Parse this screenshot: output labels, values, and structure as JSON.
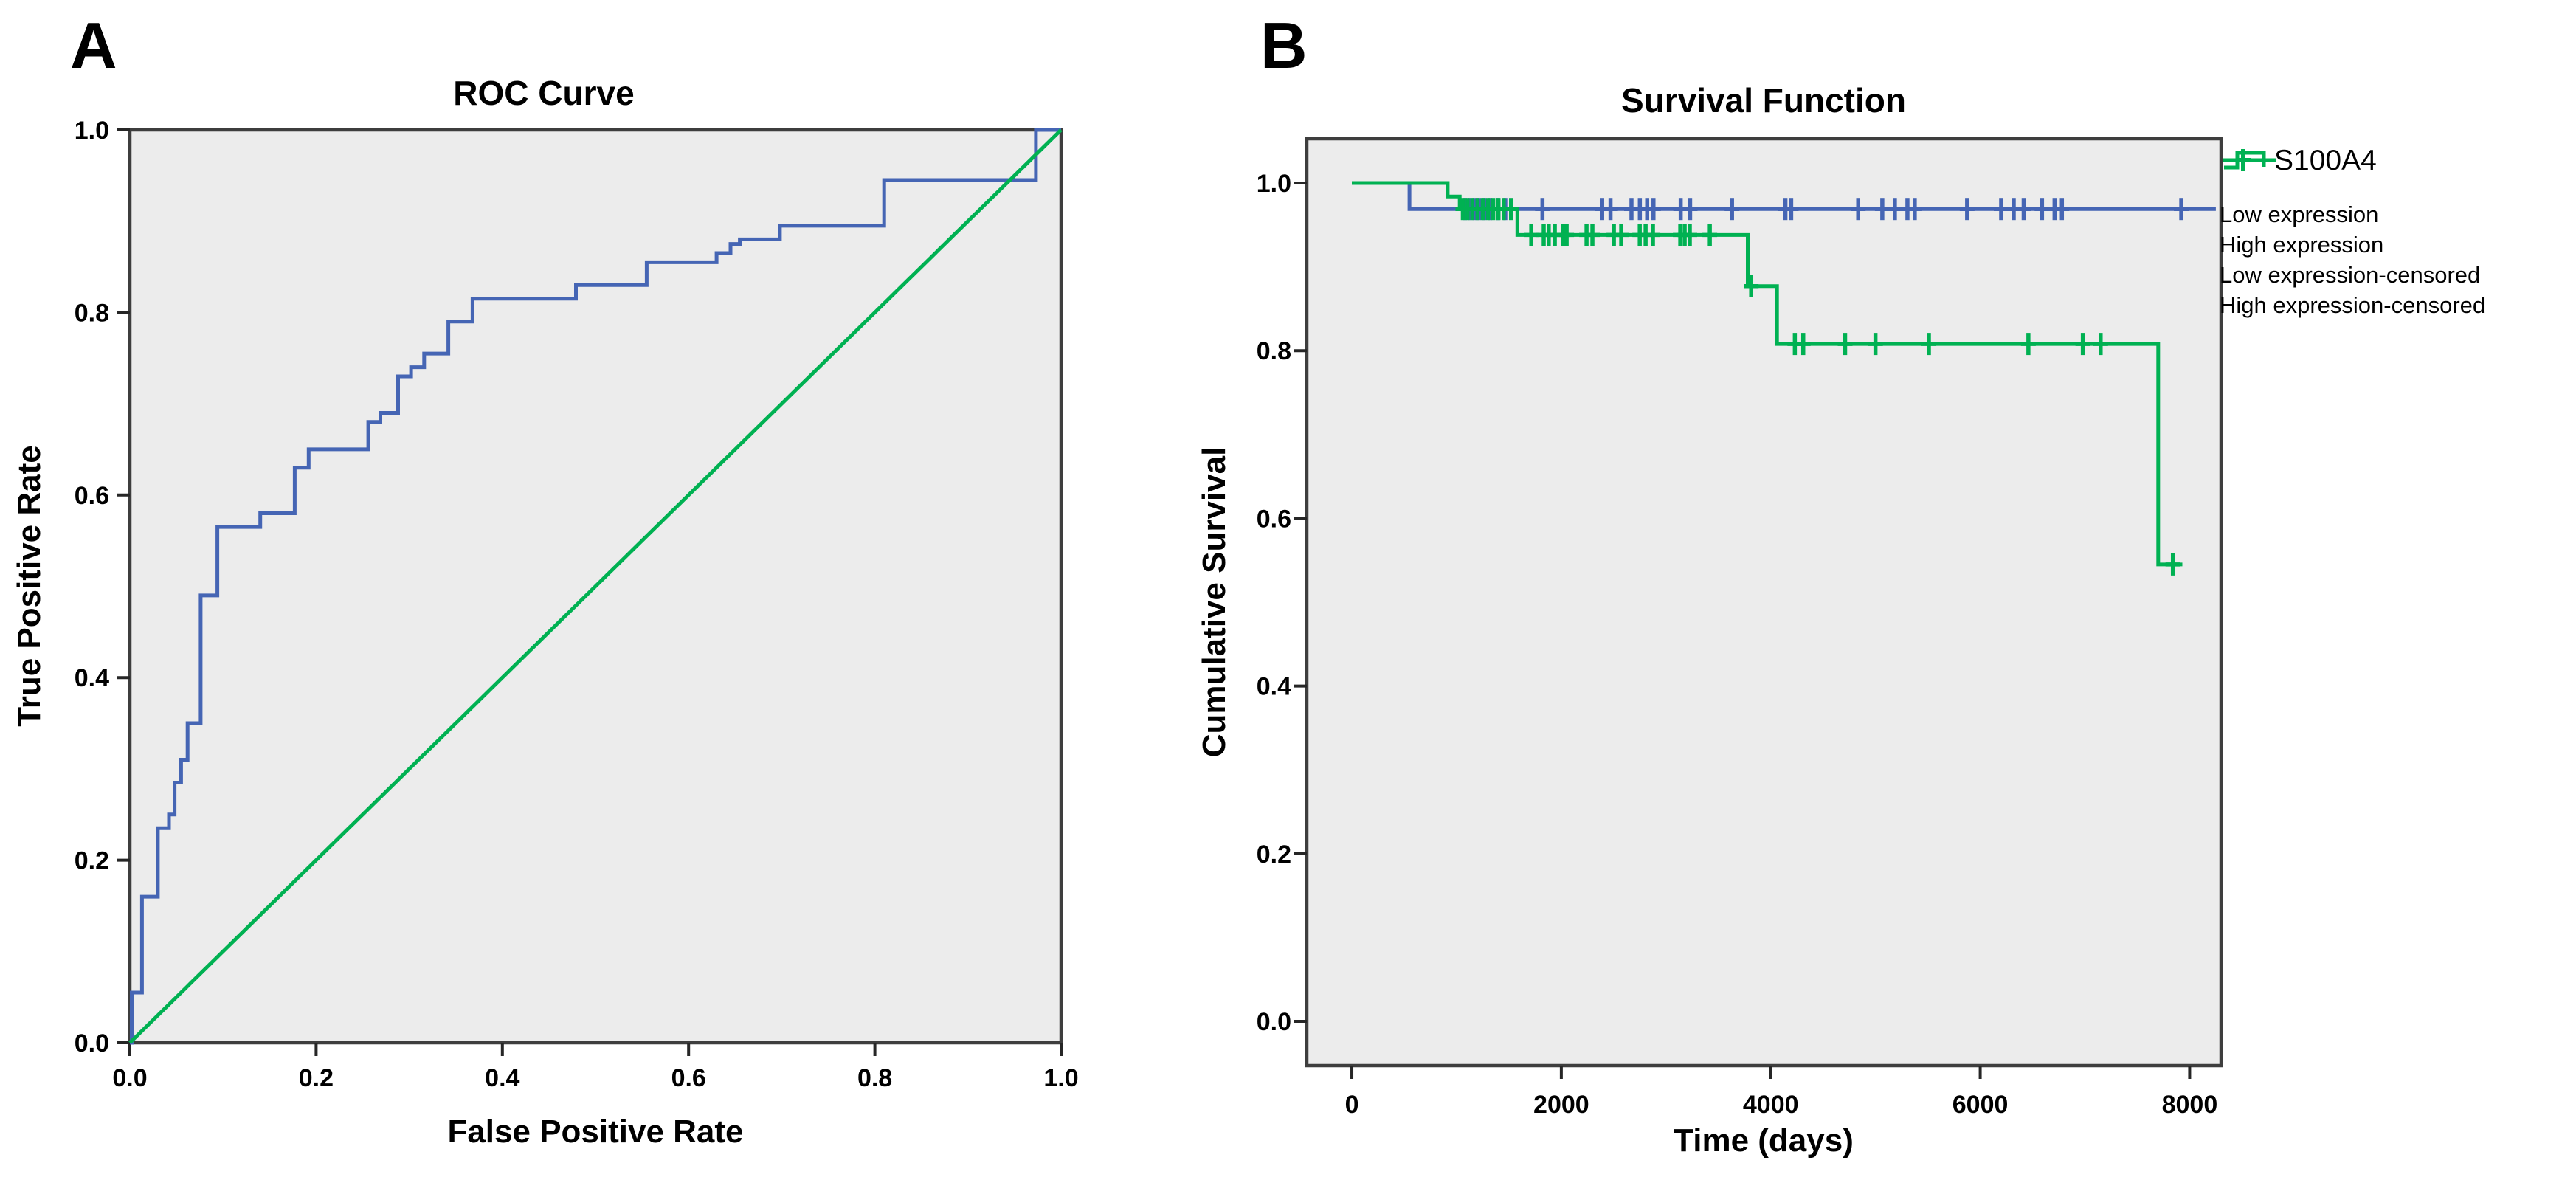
{
  "figure": {
    "background": "#ffffff",
    "plot_bg": "#ececec",
    "frame_color": "#3e3e3e",
    "blue": "#4565b4",
    "green": "#00b152",
    "light_blue": "#7b90d2"
  },
  "chart_data": [
    {
      "id": "roc",
      "type": "line",
      "panel_label": "A",
      "title": "ROC Curve",
      "xlabel": "False Positive Rate",
      "ylabel": "True Positive Rate",
      "xlim": [
        0,
        1
      ],
      "ylim": [
        0,
        1
      ],
      "grid": false,
      "x_ticks": [
        {
          "value": 0.0,
          "label": "0.0"
        },
        {
          "value": 0.2,
          "label": "0.2"
        },
        {
          "value": 0.4,
          "label": "0.4"
        },
        {
          "value": 0.6,
          "label": "0.6"
        },
        {
          "value": 0.8,
          "label": "0.8"
        },
        {
          "value": 1.0,
          "label": "1.0"
        }
      ],
      "y_ticks": [
        {
          "value": 0.0,
          "label": "0.0"
        },
        {
          "value": 0.2,
          "label": "0.2"
        },
        {
          "value": 0.4,
          "label": "0.4"
        },
        {
          "value": 0.6,
          "label": "0.6"
        },
        {
          "value": 0.8,
          "label": "0.8"
        },
        {
          "value": 1.0,
          "label": "1.0"
        }
      ],
      "series": [
        {
          "name": "ROC curve",
          "color": "#4565b4",
          "width": 5,
          "points": [
            [
              0,
              0
            ],
            [
              0.002,
              0
            ],
            [
              0.002,
              0.055
            ],
            [
              0.013,
              0.055
            ],
            [
              0.013,
              0.16
            ],
            [
              0.03,
              0.16
            ],
            [
              0.03,
              0.235
            ],
            [
              0.042,
              0.235
            ],
            [
              0.042,
              0.25
            ],
            [
              0.048,
              0.25
            ],
            [
              0.048,
              0.285
            ],
            [
              0.055,
              0.285
            ],
            [
              0.055,
              0.31
            ],
            [
              0.062,
              0.31
            ],
            [
              0.062,
              0.35
            ],
            [
              0.076,
              0.35
            ],
            [
              0.076,
              0.49
            ],
            [
              0.094,
              0.49
            ],
            [
              0.094,
              0.565
            ],
            [
              0.14,
              0.565
            ],
            [
              0.14,
              0.58
            ],
            [
              0.177,
              0.58
            ],
            [
              0.177,
              0.63
            ],
            [
              0.192,
              0.63
            ],
            [
              0.192,
              0.65
            ],
            [
              0.256,
              0.65
            ],
            [
              0.256,
              0.68
            ],
            [
              0.269,
              0.68
            ],
            [
              0.269,
              0.69
            ],
            [
              0.288,
              0.69
            ],
            [
              0.288,
              0.73
            ],
            [
              0.302,
              0.73
            ],
            [
              0.302,
              0.74
            ],
            [
              0.316,
              0.74
            ],
            [
              0.316,
              0.755
            ],
            [
              0.342,
              0.755
            ],
            [
              0.342,
              0.79
            ],
            [
              0.368,
              0.79
            ],
            [
              0.368,
              0.815
            ],
            [
              0.479,
              0.815
            ],
            [
              0.479,
              0.83
            ],
            [
              0.555,
              0.83
            ],
            [
              0.555,
              0.855
            ],
            [
              0.63,
              0.855
            ],
            [
              0.63,
              0.865
            ],
            [
              0.645,
              0.865
            ],
            [
              0.645,
              0.875
            ],
            [
              0.655,
              0.875
            ],
            [
              0.655,
              0.88
            ],
            [
              0.698,
              0.88
            ],
            [
              0.698,
              0.895
            ],
            [
              0.81,
              0.895
            ],
            [
              0.81,
              0.945
            ],
            [
              0.973,
              0.945
            ],
            [
              0.973,
              1
            ],
            [
              1,
              1
            ]
          ],
          "censored": []
        },
        {
          "name": "Reference line",
          "color": "#00b152",
          "width": 5,
          "points": [
            [
              0,
              0
            ],
            [
              1,
              1
            ]
          ],
          "censored": []
        }
      ]
    },
    {
      "id": "survival",
      "type": "line",
      "panel_label": "B",
      "title": "Survival Function",
      "xlabel": "Time (days)",
      "ylabel": "Cumulative Survival",
      "xlim": [
        -430,
        8300
      ],
      "ylim": [
        -0.0528,
        1.0528
      ],
      "grid": false,
      "x_ticks": [
        {
          "value": 0,
          "label": "0"
        },
        {
          "value": 2000,
          "label": "2000"
        },
        {
          "value": 4000,
          "label": "4000"
        },
        {
          "value": 6000,
          "label": "6000"
        },
        {
          "value": 8000,
          "label": "8000"
        }
      ],
      "y_ticks": [
        {
          "value": 0.0,
          "label": "0.0"
        },
        {
          "value": 0.2,
          "label": "0.2"
        },
        {
          "value": 0.4,
          "label": "0.4"
        },
        {
          "value": 0.6,
          "label": "0.6"
        },
        {
          "value": 0.8,
          "label": "0.8"
        },
        {
          "value": 1.0,
          "label": "1.0"
        }
      ],
      "series": [
        {
          "name": "Low expression",
          "color": "#4565b4",
          "width": 5,
          "points": [
            [
              0,
              1
            ],
            [
              550,
              1
            ],
            [
              550,
              0.969
            ],
            [
              8250,
              0.969
            ]
          ],
          "censored": [
            [
              1080,
              0.969
            ],
            [
              1125,
              0.969
            ],
            [
              1170,
              0.969
            ],
            [
              1215,
              0.969
            ],
            [
              1265,
              0.969
            ],
            [
              1320,
              0.969
            ],
            [
              1395,
              0.969
            ],
            [
              1465,
              0.969
            ],
            [
              1820,
              0.969
            ],
            [
              2390,
              0.969
            ],
            [
              2470,
              0.969
            ],
            [
              2670,
              0.969
            ],
            [
              2750,
              0.969
            ],
            [
              2820,
              0.969
            ],
            [
              2880,
              0.969
            ],
            [
              3140,
              0.969
            ],
            [
              3230,
              0.969
            ],
            [
              3630,
              0.969
            ],
            [
              4140,
              0.969
            ],
            [
              4195,
              0.969
            ],
            [
              4835,
              0.969
            ],
            [
              5065,
              0.969
            ],
            [
              5185,
              0.969
            ],
            [
              5305,
              0.969
            ],
            [
              5375,
              0.969
            ],
            [
              5875,
              0.969
            ],
            [
              6200,
              0.969
            ],
            [
              6320,
              0.969
            ],
            [
              6415,
              0.969
            ],
            [
              6590,
              0.969
            ],
            [
              6710,
              0.969
            ],
            [
              6780,
              0.969
            ],
            [
              7920,
              0.969
            ]
          ]
        },
        {
          "name": "High expression",
          "color": "#00b152",
          "width": 5,
          "points": [
            [
              0,
              1
            ],
            [
              915,
              1
            ],
            [
              915,
              0.984
            ],
            [
              1030,
              0.984
            ],
            [
              1030,
              0.969
            ],
            [
              1580,
              0.969
            ],
            [
              1580,
              0.938
            ],
            [
              3780,
              0.938
            ],
            [
              3780,
              0.877
            ],
            [
              4060,
              0.877
            ],
            [
              4060,
              0.808
            ],
            [
              7700,
              0.808
            ],
            [
              7700,
              0.545
            ],
            [
              7930,
              0.545
            ]
          ],
          "censored": [
            [
              1060,
              0.969
            ],
            [
              1105,
              0.969
            ],
            [
              1150,
              0.969
            ],
            [
              1200,
              0.969
            ],
            [
              1250,
              0.969
            ],
            [
              1300,
              0.969
            ],
            [
              1350,
              0.969
            ],
            [
              1400,
              0.969
            ],
            [
              1450,
              0.969
            ],
            [
              1520,
              0.969
            ],
            [
              1713,
              0.938
            ],
            [
              1832,
              0.938
            ],
            [
              1880,
              0.938
            ],
            [
              1938,
              0.938
            ],
            [
              2016,
              0.938
            ],
            [
              2051,
              0.938
            ],
            [
              2241,
              0.938
            ],
            [
              2297,
              0.938
            ],
            [
              2502,
              0.938
            ],
            [
              2572,
              0.938
            ],
            [
              2749,
              0.938
            ],
            [
              2805,
              0.938
            ],
            [
              2875,
              0.938
            ],
            [
              3136,
              0.938
            ],
            [
              3178,
              0.938
            ],
            [
              3227,
              0.938
            ],
            [
              3418,
              0.938
            ],
            [
              3813,
              0.877
            ],
            [
              4230,
              0.808
            ],
            [
              4310,
              0.808
            ],
            [
              4710,
              0.808
            ],
            [
              5000,
              0.808
            ],
            [
              5510,
              0.808
            ],
            [
              6460,
              0.808
            ],
            [
              6980,
              0.808
            ],
            [
              7150,
              0.808
            ],
            [
              7840,
              0.545
            ]
          ]
        }
      ],
      "legend": {
        "title": "S100A4",
        "position": "right",
        "entries": [
          {
            "label": "Low expression",
            "symbol": "step",
            "color": "#4565b4"
          },
          {
            "label": "High expression",
            "symbol": "step",
            "color": "#00b152"
          },
          {
            "label": "Low expression-censored",
            "symbol": "plus-line",
            "color": "#7b90d2",
            "plus_color": "#4565b4"
          },
          {
            "label": "High expression-censored",
            "symbol": "plus-line",
            "color": "#00b152",
            "plus_color": "#00b152"
          }
        ]
      }
    }
  ]
}
